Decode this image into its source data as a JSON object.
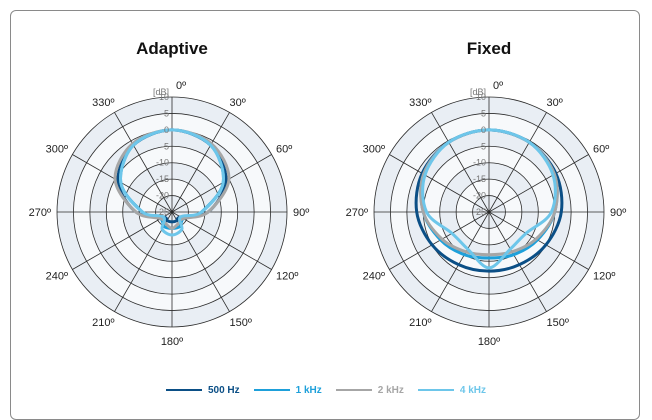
{
  "chart_data": [
    {
      "type": "polar",
      "title": "Adaptive",
      "radial_unit": "[dB]",
      "radial_ticks": [
        "10",
        "5",
        "0",
        "-5",
        "-10",
        "-15",
        "-20",
        "-25"
      ],
      "radial_range": [
        -25,
        10
      ],
      "angle_ticks": [
        "0º",
        "30º",
        "60º",
        "90º",
        "120º",
        "150º",
        "180º",
        "210º",
        "240º",
        "270º",
        "300º",
        "330º"
      ],
      "angle_step_deg": 30,
      "series": [
        {
          "name": "500 Hz",
          "color": "#0b4f86",
          "theta": [
            0,
            30,
            60,
            90,
            120,
            150,
            180,
            210,
            240,
            270,
            300,
            330,
            360
          ],
          "r": [
            0,
            -1.5,
            -6,
            -14,
            -22,
            -22,
            -22,
            -22,
            -22,
            -14,
            -6,
            -1.5,
            0
          ]
        },
        {
          "name": "1 kHz",
          "color": "#1ea0da",
          "theta": [
            0,
            30,
            60,
            90,
            120,
            150,
            180,
            210,
            240,
            270,
            300,
            330,
            360
          ],
          "r": [
            0,
            -1.5,
            -7,
            -16,
            -21,
            -20,
            -20,
            -20,
            -21,
            -16,
            -7,
            -1.5,
            0
          ]
        },
        {
          "name": "2 kHz",
          "color": "#a6a6a6",
          "theta": [
            0,
            30,
            60,
            90,
            120,
            150,
            180,
            210,
            240,
            270,
            300,
            330,
            360
          ],
          "r": [
            0,
            -1,
            -5,
            -14,
            -21,
            -21,
            -20,
            -21,
            -21,
            -14,
            -5,
            -1,
            0
          ]
        },
        {
          "name": "4 kHz",
          "color": "#6dc6ea",
          "theta": [
            0,
            30,
            60,
            90,
            120,
            150,
            180,
            210,
            240,
            270,
            300,
            330,
            360
          ],
          "r": [
            0,
            -1.5,
            -7,
            -16,
            -22,
            -19,
            -18,
            -19,
            -22,
            -16,
            -7,
            -1.5,
            0
          ]
        }
      ]
    },
    {
      "type": "polar",
      "title": "Fixed",
      "radial_unit": "[dB]",
      "radial_ticks": [
        "10",
        "5",
        "0",
        "-5",
        "-10",
        "-15",
        "-20",
        "-25"
      ],
      "radial_range": [
        -25,
        10
      ],
      "angle_ticks": [
        "0º",
        "30º",
        "60º",
        "90º",
        "120º",
        "150º",
        "180º",
        "210º",
        "240º",
        "270º",
        "300º",
        "330º"
      ],
      "angle_step_deg": 30,
      "series": [
        {
          "name": "500 Hz",
          "color": "#0b4f86",
          "theta": [
            0,
            30,
            60,
            90,
            120,
            150,
            180,
            210,
            240,
            270,
            300,
            330,
            360
          ],
          "r": [
            0,
            -0.5,
            -1.5,
            -3,
            -5,
            -6.5,
            -7,
            -6.5,
            -5,
            -3,
            -1.5,
            -0.5,
            0
          ]
        },
        {
          "name": "1 kHz",
          "color": "#1ea0da",
          "theta": [
            0,
            30,
            60,
            90,
            120,
            150,
            180,
            210,
            240,
            270,
            300,
            330,
            360
          ],
          "r": [
            0,
            -0.5,
            -2,
            -5,
            -8,
            -10,
            -11,
            -10,
            -8,
            -5,
            -2,
            -0.5,
            0
          ]
        },
        {
          "name": "2 kHz",
          "color": "#a6a6a6",
          "theta": [
            0,
            30,
            60,
            90,
            120,
            150,
            180,
            210,
            240,
            270,
            300,
            330,
            360
          ],
          "r": [
            0,
            -0.5,
            -2,
            -5,
            -8.5,
            -11,
            -12,
            -11,
            -8.5,
            -5,
            -2,
            -0.5,
            0
          ]
        },
        {
          "name": "4 kHz",
          "color": "#6dc6ea",
          "theta": [
            0,
            30,
            60,
            90,
            120,
            150,
            180,
            210,
            240,
            270,
            300,
            330,
            360
          ],
          "r": [
            0,
            -0.5,
            -2.5,
            -6,
            -12,
            -12,
            -8,
            -12,
            -12,
            -6,
            -2.5,
            -0.5,
            0
          ]
        }
      ]
    }
  ],
  "legend": [
    {
      "label": "500 Hz",
      "color": "#0b4f86"
    },
    {
      "label": "1 kHz",
      "color": "#1ea0da"
    },
    {
      "label": "2 kHz",
      "color": "#a6a6a6"
    },
    {
      "label": "4 kHz",
      "color": "#6dc6ea"
    }
  ]
}
